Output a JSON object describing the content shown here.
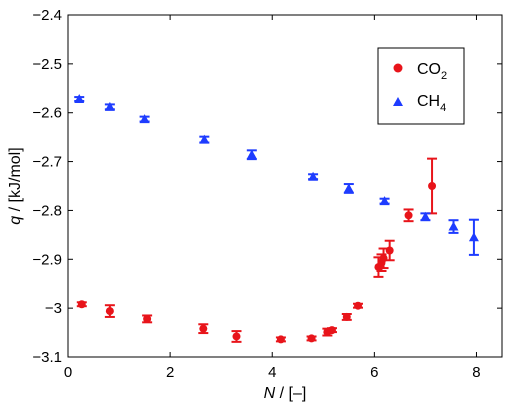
{
  "chart_data": {
    "type": "scatter",
    "title": "",
    "xlabel": {
      "var": "N",
      "unit": "[–]"
    },
    "ylabel": {
      "var": "q",
      "unit": "[kJ/mol]"
    },
    "xlim": [
      0,
      8.5
    ],
    "ylim": [
      -3.1,
      -2.4
    ],
    "x_ticks": [
      0,
      2,
      4,
      6,
      8
    ],
    "x_tick_labels": [
      "0",
      "2",
      "4",
      "6",
      "8"
    ],
    "y_ticks": [
      -3.1,
      -3.0,
      -2.9,
      -2.8,
      -2.7,
      -2.6,
      -2.5,
      -2.4
    ],
    "y_tick_labels": [
      "−3.1",
      "−3",
      "−2.9",
      "−2.8",
      "−2.7",
      "−2.6",
      "−2.5",
      "−2.4"
    ],
    "grid": false,
    "legend": "top-right",
    "series": [
      {
        "name": "CO",
        "name_sub": "2",
        "marker": "circle",
        "color": "#e8141a",
        "points": [
          {
            "x": 0.27,
            "y": -2.992,
            "err": 0.004
          },
          {
            "x": 0.82,
            "y": -3.006,
            "err": 0.012
          },
          {
            "x": 1.55,
            "y": -3.022,
            "err": 0.007
          },
          {
            "x": 2.65,
            "y": -3.042,
            "err": 0.009
          },
          {
            "x": 3.3,
            "y": -3.058,
            "err": 0.011
          },
          {
            "x": 4.17,
            "y": -3.064,
            "err": 0.004
          },
          {
            "x": 4.77,
            "y": -3.062,
            "err": 0.004
          },
          {
            "x": 5.08,
            "y": -3.049,
            "err": 0.007
          },
          {
            "x": 5.17,
            "y": -3.045,
            "err": 0.004
          },
          {
            "x": 5.46,
            "y": -3.018,
            "err": 0.006
          },
          {
            "x": 5.68,
            "y": -2.995,
            "err": 0.004
          },
          {
            "x": 6.08,
            "y": -2.916,
            "err": 0.02
          },
          {
            "x": 6.14,
            "y": -2.907,
            "err": 0.017
          },
          {
            "x": 6.18,
            "y": -2.898,
            "err": 0.02
          },
          {
            "x": 6.3,
            "y": -2.882,
            "err": 0.02
          },
          {
            "x": 6.67,
            "y": -2.81,
            "err": 0.012
          },
          {
            "x": 7.13,
            "y": -2.75,
            "err": 0.056
          }
        ]
      },
      {
        "name": "CH",
        "name_sub": "4",
        "marker": "triangle",
        "color": "#1e3cff",
        "points": [
          {
            "x": 0.22,
            "y": -2.572,
            "err": 0.004
          },
          {
            "x": 0.82,
            "y": -2.588,
            "err": 0.005
          },
          {
            "x": 1.5,
            "y": -2.613,
            "err": 0.005
          },
          {
            "x": 2.67,
            "y": -2.655,
            "err": 0.006
          },
          {
            "x": 3.6,
            "y": -2.686,
            "err": 0.009
          },
          {
            "x": 4.8,
            "y": -2.731,
            "err": 0.005
          },
          {
            "x": 5.5,
            "y": -2.755,
            "err": 0.009
          },
          {
            "x": 6.2,
            "y": -2.781,
            "err": 0.005
          },
          {
            "x": 7.0,
            "y": -2.813,
            "err": 0.007
          },
          {
            "x": 7.55,
            "y": -2.833,
            "err": 0.013
          },
          {
            "x": 7.95,
            "y": -2.855,
            "err": 0.036
          }
        ]
      }
    ]
  }
}
